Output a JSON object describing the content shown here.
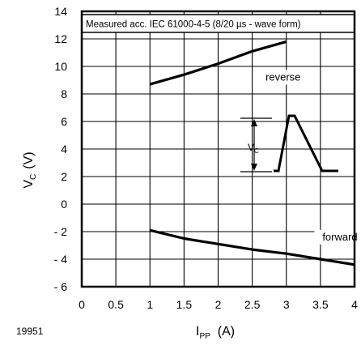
{
  "chart_data": {
    "type": "line",
    "figure_id": "19951",
    "annotation": "Measured acc. IEC 61000-4-5 (8/20 µs - wave form)",
    "xlabel": {
      "main": "I",
      "sub": "PP",
      "unit": "(A)"
    },
    "ylabel": {
      "main": "V",
      "sub": "C",
      "unit": "(V)"
    },
    "xlim": [
      0,
      4
    ],
    "ylim": [
      -6,
      14
    ],
    "x_ticks": [
      0,
      0.5,
      1,
      1.5,
      2,
      2.5,
      3,
      3.5,
      4
    ],
    "x_tick_labels": [
      "0",
      "0.5",
      "1",
      "1.5",
      "2",
      "2.5",
      "3",
      "3.5",
      "4"
    ],
    "y_ticks": [
      -6,
      -4,
      -2,
      0,
      2,
      4,
      6,
      8,
      10,
      12,
      14
    ],
    "y_tick_labels": [
      "- 6",
      "- 4",
      "- 2",
      "0",
      "2",
      "4",
      "6",
      "8",
      "10",
      "12",
      "14"
    ],
    "grid": true,
    "series": [
      {
        "name": "reverse",
        "x": [
          1,
          1.5,
          2,
          2.5,
          3
        ],
        "y": [
          8.7,
          9.4,
          10.2,
          11.1,
          11.8
        ]
      },
      {
        "name": "forward",
        "x": [
          1,
          1.5,
          2,
          2.5,
          3,
          3.5,
          4
        ],
        "y": [
          -1.9,
          -2.5,
          -2.9,
          -3.3,
          -3.6,
          -4.0,
          -4.4
        ]
      }
    ],
    "inset": {
      "label": {
        "main": "V",
        "sub": "C"
      }
    }
  }
}
